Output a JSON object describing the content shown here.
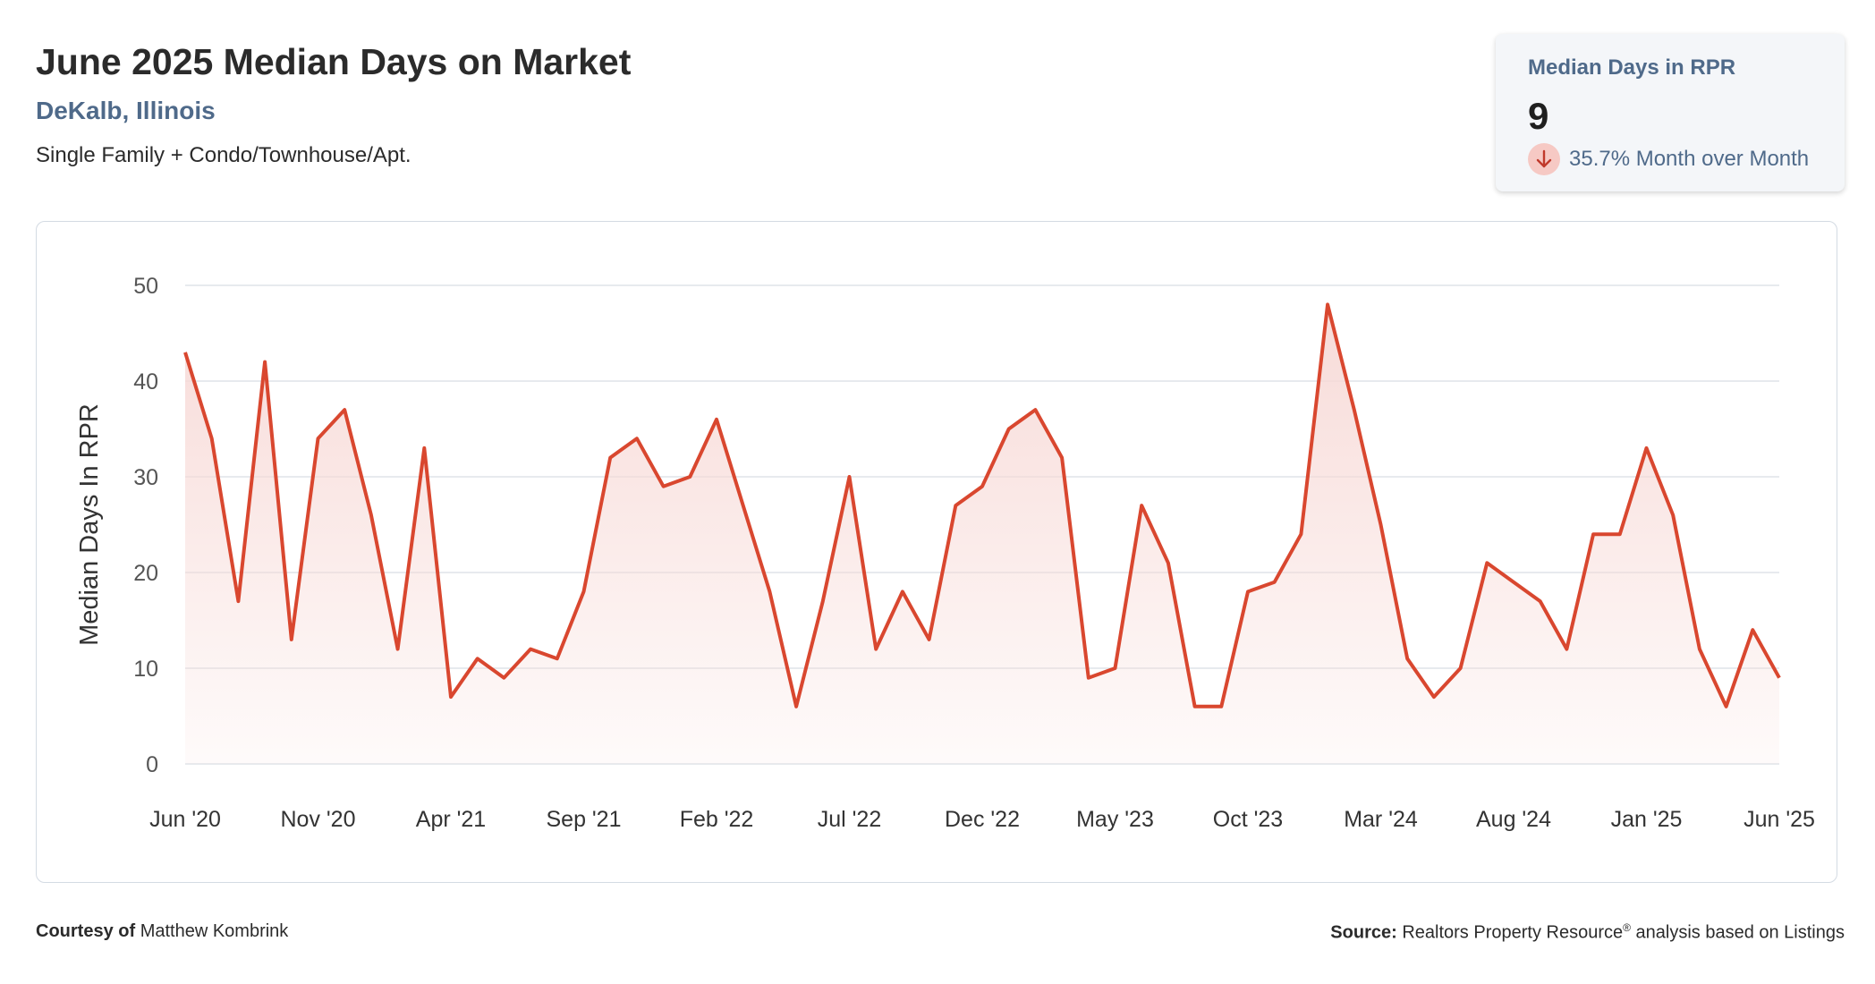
{
  "header": {
    "title": "June 2025 Median Days on Market",
    "location": "DeKalb, Illinois",
    "property_type": "Single Family + Condo/Townhouse/Apt."
  },
  "stat_card": {
    "label": "Median Days in RPR",
    "value": "9",
    "change": "35.7% Month over Month",
    "direction_icon": "arrow-down-icon",
    "accent_color": "#d9472f"
  },
  "footer": {
    "courtesy_label": "Courtesy of",
    "courtesy_name": "Matthew Kombrink",
    "source_label": "Source:",
    "source_text_1": "Realtors Property Resource",
    "source_sup": "®",
    "source_text_2": " analysis based on Listings"
  },
  "chart_data": {
    "type": "area",
    "title": "",
    "xlabel": "",
    "ylabel": "Median Days In RPR",
    "ylim": [
      0,
      50
    ],
    "yticks": [
      0,
      10,
      20,
      30,
      40,
      50
    ],
    "grid": true,
    "line_color": "#d9472f",
    "fill_color": "#f7d9d6",
    "x_tick_labels": [
      "Jun '20",
      "Nov '20",
      "Apr '21",
      "Sep '21",
      "Feb '22",
      "Jul '22",
      "Dec '22",
      "May '23",
      "Oct '23",
      "Mar '24",
      "Aug '24",
      "Jan '25",
      "Jun '25"
    ],
    "x": [
      "2020-06",
      "2020-07",
      "2020-08",
      "2020-09",
      "2020-10",
      "2020-11",
      "2020-12",
      "2021-01",
      "2021-02",
      "2021-03",
      "2021-04",
      "2021-05",
      "2021-06",
      "2021-07",
      "2021-08",
      "2021-09",
      "2021-10",
      "2021-11",
      "2021-12",
      "2022-01",
      "2022-02",
      "2022-03",
      "2022-04",
      "2022-05",
      "2022-06",
      "2022-07",
      "2022-08",
      "2022-09",
      "2022-10",
      "2022-11",
      "2022-12",
      "2023-01",
      "2023-02",
      "2023-03",
      "2023-04",
      "2023-05",
      "2023-06",
      "2023-07",
      "2023-08",
      "2023-09",
      "2023-10",
      "2023-11",
      "2023-12",
      "2024-01",
      "2024-02",
      "2024-03",
      "2024-04",
      "2024-05",
      "2024-06",
      "2024-07",
      "2024-08",
      "2024-09",
      "2024-10",
      "2024-11",
      "2024-12",
      "2025-01",
      "2025-02",
      "2025-03",
      "2025-04",
      "2025-05",
      "2025-06"
    ],
    "series": [
      {
        "values": [
          43,
          34,
          17,
          42,
          13,
          34,
          37,
          26,
          12,
          33,
          7,
          11,
          9,
          12,
          11,
          18,
          32,
          34,
          29,
          30,
          36,
          27,
          18,
          6,
          17,
          30,
          12,
          18,
          13,
          27,
          29,
          35,
          37,
          32,
          9,
          10,
          27,
          21,
          6,
          6,
          18,
          19,
          24,
          48,
          37,
          25,
          11,
          7,
          10,
          21,
          19,
          17,
          12,
          24,
          24,
          33,
          26,
          12,
          6,
          14,
          9
        ]
      }
    ]
  }
}
